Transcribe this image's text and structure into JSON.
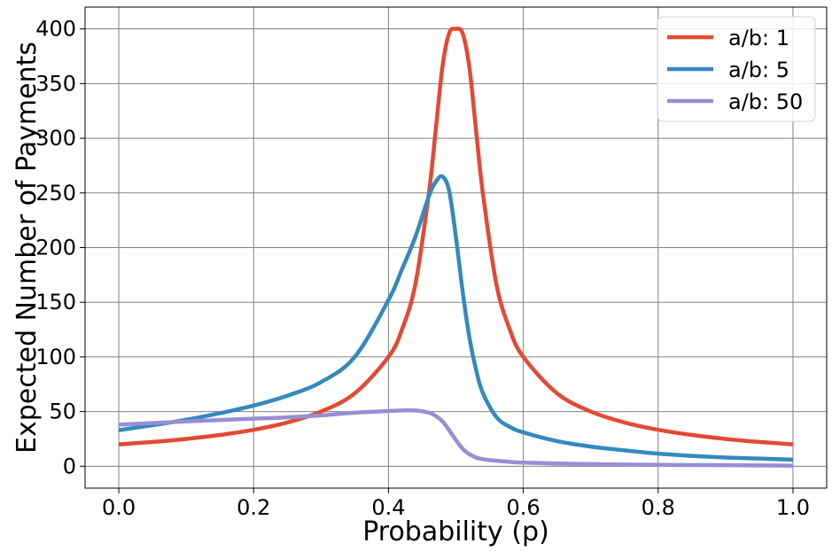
{
  "chart_data": {
    "type": "line",
    "title": "",
    "xlabel": "Probability (p)",
    "ylabel": "Expected Number of Payments",
    "xlim": [
      -0.05,
      1.05
    ],
    "ylim": [
      -20,
      420
    ],
    "xticks": [
      0.0,
      0.2,
      0.4,
      0.6,
      0.8,
      1.0
    ],
    "xtick_labels": [
      "0.0",
      "0.2",
      "0.4",
      "0.6",
      "0.8",
      "1.0"
    ],
    "yticks": [
      0,
      50,
      100,
      150,
      200,
      250,
      300,
      350,
      400
    ],
    "ytick_labels": [
      "0",
      "50",
      "100",
      "150",
      "200",
      "250",
      "300",
      "350",
      "400"
    ],
    "grid": true,
    "legend_position": "top-right",
    "x": [
      0.0,
      0.05,
      0.1,
      0.15,
      0.2,
      0.25,
      0.3,
      0.35,
      0.4,
      0.42,
      0.44,
      0.46,
      0.47,
      0.48,
      0.49,
      0.5,
      0.51,
      0.52,
      0.53,
      0.54,
      0.56,
      0.58,
      0.6,
      0.65,
      0.7,
      0.75,
      0.8,
      0.85,
      0.9,
      0.95,
      1.0
    ],
    "series": [
      {
        "name": "a/b: 1",
        "color": "#E24A33",
        "values": [
          20,
          22.2,
          25,
          28.6,
          33.3,
          40,
          50,
          66.7,
          100,
          125,
          166.7,
          250,
          307,
          365,
          396,
          400,
          396,
          365,
          307,
          250,
          166.7,
          125,
          100,
          66.7,
          50,
          40,
          33.3,
          28.6,
          25,
          22.2,
          20
        ]
      },
      {
        "name": "a/b: 5",
        "color": "#348ABD",
        "values": [
          33,
          37.5,
          42.5,
          48.5,
          55.5,
          64.5,
          77,
          100,
          152,
          180,
          210,
          247,
          260,
          265,
          252,
          210,
          160,
          118,
          88,
          67,
          45,
          36,
          31,
          23,
          18,
          14.5,
          11.5,
          9.5,
          8,
          7,
          6
        ]
      },
      {
        "name": "a/b: 50",
        "color": "#988ED5",
        "values": [
          38,
          39.5,
          41,
          42.3,
          43.5,
          44.7,
          46.5,
          49,
          50.5,
          51,
          51,
          49,
          46,
          41,
          33,
          24,
          16,
          11,
          8,
          6.5,
          5,
          4,
          3.3,
          2.5,
          2,
          1.6,
          1.3,
          1.1,
          1,
          0.8,
          0.5
        ]
      }
    ]
  }
}
